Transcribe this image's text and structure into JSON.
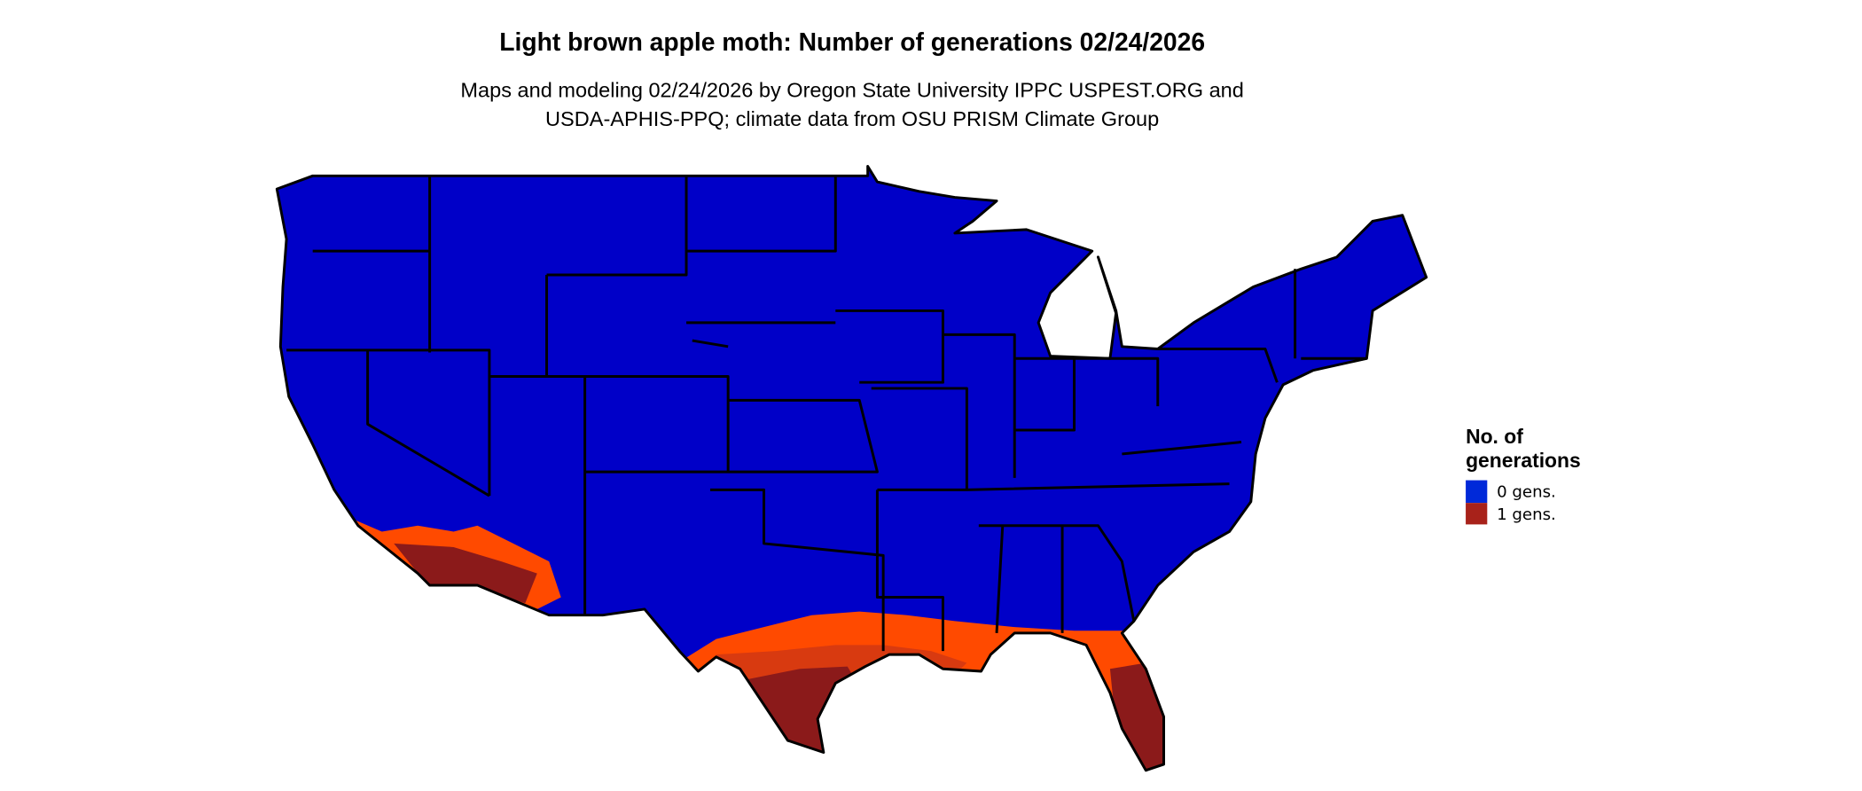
{
  "title": "Light brown apple moth: Number of generations 02/24/2026",
  "subtitle_lines": [
    "Maps and modeling 02/24/2026 by Oregon State University IPPC USPEST.ORG and",
    "USDA-APHIS-PPQ; climate data from OSU PRISM Climate Group"
  ],
  "legend": {
    "title_lines": [
      "No. of",
      "generations"
    ],
    "items": [
      {
        "label": "0 gens.",
        "color": "#0029d9"
      },
      {
        "label": "1 gens.",
        "color": "#a8221a"
      }
    ]
  },
  "map_colors": {
    "zero_gens": "#0000c8",
    "one_gen_low": "#ff4a00",
    "one_gen_mid": "#d83a10",
    "one_gen_high": "#8b1a1a",
    "borders": "#000000"
  }
}
